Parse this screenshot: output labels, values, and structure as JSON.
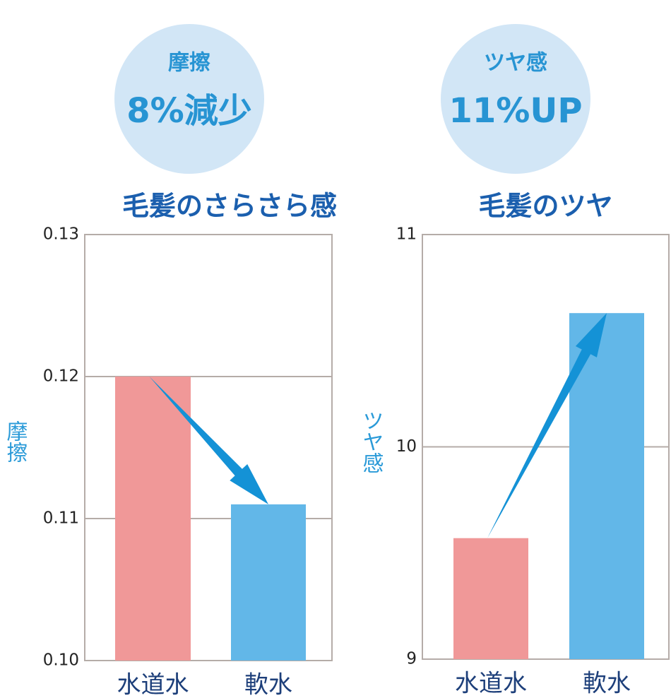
{
  "chart_data": [
    {
      "type": "bar",
      "title": "毛髪のさらさら感",
      "y_label": "摩擦",
      "badge": {
        "label": "摩擦",
        "headline": "8%減少"
      },
      "categories": [
        "水道水",
        "軟水"
      ],
      "values": [
        0.12,
        0.111
      ],
      "colors": [
        "#f09898",
        "#62b7e8"
      ],
      "ylim": [
        0.1,
        0.13
      ],
      "yticks": [
        {
          "value": 0.1,
          "label": "0.10"
        },
        0.11,
        0.12,
        0.13
      ],
      "grid": true
    },
    {
      "type": "bar",
      "title": "毛髪のツヤ",
      "y_label": "ツヤ感",
      "badge": {
        "label": "ツヤ感",
        "headline": "11%UP"
      },
      "categories": [
        "水道水",
        "軟水"
      ],
      "values": [
        9.57,
        10.63
      ],
      "colors": [
        "#f09898",
        "#62b7e8"
      ],
      "ylim": [
        9,
        11
      ],
      "yticks": [
        9,
        10,
        11
      ],
      "grid": true
    }
  ]
}
